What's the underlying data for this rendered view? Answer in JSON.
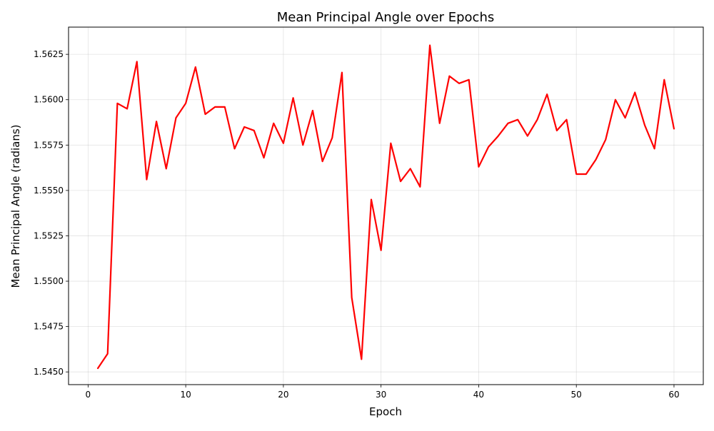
{
  "chart_data": {
    "type": "line",
    "title": "Mean Principal Angle over Epochs",
    "xlabel": "Epoch",
    "ylabel": "Mean Principal Angle (radians)",
    "xlim": [
      -2,
      63
    ],
    "ylim": [
      1.5443,
      1.564
    ],
    "xticks": [
      0,
      10,
      20,
      30,
      40,
      50,
      60
    ],
    "xtick_labels": [
      "0",
      "10",
      "20",
      "30",
      "40",
      "50",
      "60"
    ],
    "yticks": [
      1.545,
      1.5475,
      1.55,
      1.5525,
      1.555,
      1.5575,
      1.56,
      1.5625
    ],
    "ytick_labels": [
      "1.5450",
      "1.5475",
      "1.5500",
      "1.5525",
      "1.5550",
      "1.5575",
      "1.5600",
      "1.5625"
    ],
    "grid": true,
    "series": [
      {
        "color": "#ff0000",
        "x": [
          1,
          2,
          3,
          4,
          5,
          6,
          7,
          8,
          9,
          10,
          11,
          12,
          13,
          14,
          15,
          16,
          17,
          18,
          19,
          20,
          21,
          22,
          23,
          24,
          25,
          26,
          27,
          28,
          29,
          30,
          31,
          32,
          33,
          34,
          35,
          36,
          37,
          38,
          39,
          40,
          41,
          42,
          43,
          44,
          45,
          46,
          47,
          48,
          49,
          50,
          51,
          52,
          53,
          54,
          55,
          56,
          57,
          58,
          59,
          60
        ],
        "y": [
          1.5452,
          1.546,
          1.5598,
          1.5595,
          1.5621,
          1.5556,
          1.5588,
          1.5562,
          1.559,
          1.5598,
          1.5618,
          1.5592,
          1.5596,
          1.5596,
          1.5573,
          1.5585,
          1.5583,
          1.5568,
          1.5587,
          1.5576,
          1.5601,
          1.5575,
          1.5594,
          1.5566,
          1.5579,
          1.5615,
          1.5491,
          1.5457,
          1.5545,
          1.5517,
          1.5576,
          1.5555,
          1.5562,
          1.5552,
          1.563,
          1.5587,
          1.5613,
          1.5609,
          1.5611,
          1.5563,
          1.5574,
          1.558,
          1.5587,
          1.5589,
          1.558,
          1.5589,
          1.5603,
          1.5583,
          1.5589,
          1.5559,
          1.5559,
          1.5567,
          1.5578,
          1.56,
          1.559,
          1.5604,
          1.5586,
          1.5573,
          1.5611,
          1.5584
        ]
      }
    ]
  }
}
